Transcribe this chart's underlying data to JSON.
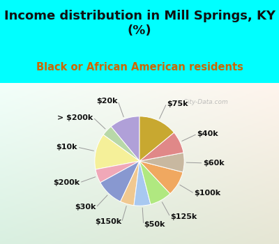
{
  "title": "Income distribution in Mill Springs, KY\n(%)",
  "subtitle": "Black or African American residents",
  "title_fontsize": 13,
  "subtitle_fontsize": 10.5,
  "title_color": "#111111",
  "subtitle_color": "#cc6600",
  "bg_cyan": "#00FFFF",
  "watermark": "  City-Data.com",
  "labels": [
    "$20k",
    "> $200k",
    "$10k",
    "$200k",
    "$30k",
    "$150k",
    "$50k",
    "$125k",
    "$100k",
    "$60k",
    "$40k",
    "$75k"
  ],
  "values": [
    11,
    4,
    13,
    5,
    10,
    5,
    6,
    8,
    9,
    7,
    8,
    14
  ],
  "colors": [
    "#b0a0d8",
    "#b8d8a8",
    "#f5f099",
    "#f0a8b8",
    "#8898d0",
    "#f0c890",
    "#a8c8f0",
    "#b0e880",
    "#f0a860",
    "#c8b8a0",
    "#e08888",
    "#c8a830"
  ],
  "startangle": 90,
  "label_fontsize": 8,
  "label_color": "#111111"
}
